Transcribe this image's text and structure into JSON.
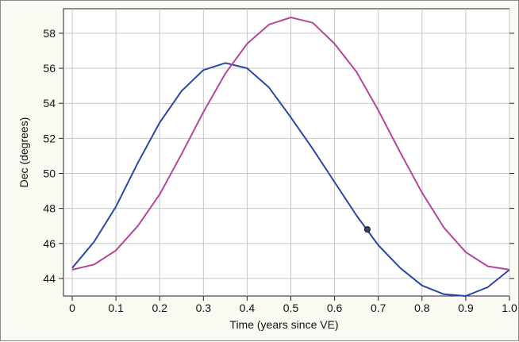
{
  "chart_data": {
    "type": "line",
    "xlabel": "Time (years since VE)",
    "ylabel": "Dec (degrees)",
    "xlim": [
      -0.02,
      1.0
    ],
    "ylim": [
      43.0,
      59.4
    ],
    "xticks": [
      0,
      0.1,
      0.2,
      0.3,
      0.4,
      0.5,
      0.6,
      0.7,
      0.8,
      0.9,
      1.0
    ],
    "xtick_labels": [
      "0",
      "0.1",
      "0.2",
      "0.3",
      "0.4",
      "0.5",
      "0.6",
      "0.7",
      "0.8",
      "0.9",
      "1.0"
    ],
    "yticks": [
      44,
      46,
      48,
      50,
      52,
      54,
      56,
      58
    ],
    "ytick_labels": [
      "44",
      "46",
      "48",
      "50",
      "52",
      "54",
      "56",
      "58"
    ],
    "grid": true,
    "series": [
      {
        "color": "#2a47a6",
        "x": [
          0,
          0.05,
          0.1,
          0.15,
          0.2,
          0.25,
          0.3,
          0.35,
          0.4,
          0.45,
          0.5,
          0.55,
          0.6,
          0.65,
          0.7,
          0.75,
          0.8,
          0.85,
          0.9,
          0.95,
          1.0
        ],
        "y": [
          44.6,
          46.1,
          48.1,
          50.6,
          52.9,
          54.7,
          55.9,
          56.3,
          56.0,
          54.9,
          53.2,
          51.4,
          49.5,
          47.6,
          45.9,
          44.6,
          43.6,
          43.1,
          43.0,
          43.5,
          44.5
        ]
      },
      {
        "color": "#b9449c",
        "x": [
          0,
          0.05,
          0.1,
          0.15,
          0.2,
          0.25,
          0.3,
          0.35,
          0.4,
          0.45,
          0.5,
          0.55,
          0.6,
          0.65,
          0.7,
          0.75,
          0.8,
          0.85,
          0.9,
          0.95,
          1.0
        ],
        "y": [
          44.5,
          44.8,
          45.6,
          47.0,
          48.8,
          51.1,
          53.5,
          55.7,
          57.4,
          58.5,
          58.9,
          58.6,
          57.4,
          55.8,
          53.6,
          51.2,
          48.9,
          46.9,
          45.5,
          44.7,
          44.5
        ]
      }
    ],
    "marker": {
      "x": 0.675,
      "y": 46.8,
      "color": "#1f2f7a"
    }
  }
}
